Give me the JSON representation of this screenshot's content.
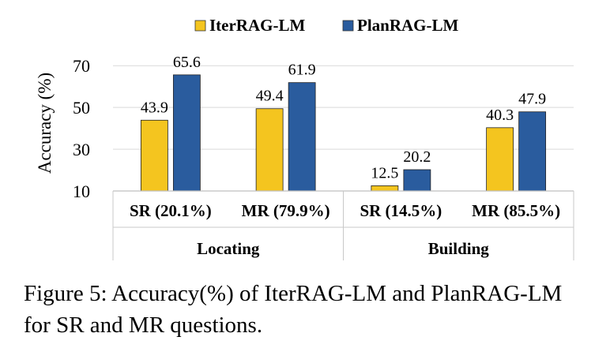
{
  "legend": [
    {
      "label": "IterRAG-LM",
      "color": "#f4c51f"
    },
    {
      "label": "PlanRAG-LM",
      "color": "#2a5c9e"
    }
  ],
  "chart_data": {
    "type": "bar",
    "ylabel": "Accuracy (%)",
    "ylim": [
      10,
      75
    ],
    "yticks": [
      10,
      30,
      50,
      70
    ],
    "grid": true,
    "legend_position": "top-center",
    "categories": [
      "SR (20.1%)",
      "MR (79.9%)",
      "SR (14.5%)",
      "MR (85.5%)"
    ],
    "groups": [
      {
        "label": "Locating",
        "categories": [
          "SR (20.1%)",
          "MR (79.9%)"
        ]
      },
      {
        "label": "Building",
        "categories": [
          "SR (14.5%)",
          "MR (85.5%)"
        ]
      }
    ],
    "series": [
      {
        "name": "IterRAG-LM",
        "color": "#f4c51f",
        "values": [
          43.9,
          49.4,
          12.5,
          40.3
        ]
      },
      {
        "name": "PlanRAG-LM",
        "color": "#2a5c9e",
        "values": [
          65.6,
          61.9,
          20.2,
          47.9
        ]
      }
    ]
  },
  "caption": "Figure 5: Accuracy(%) of IterRAG-LM and PlanRAG-LM for SR and MR questions."
}
